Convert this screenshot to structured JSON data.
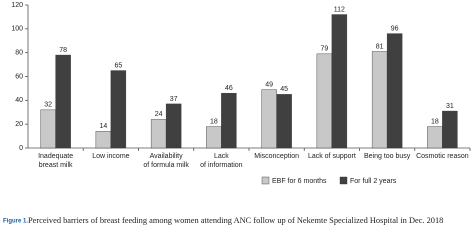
{
  "chart_data": {
    "type": "bar",
    "categories": [
      "Inadequate\nbreast milk",
      "Low income",
      "Availability\nof formula milk",
      "Lack\nof information",
      "Misconception",
      "Lack of support",
      "Being too busy",
      "Cosmotic reason"
    ],
    "series": [
      {
        "name": "EBF for 6 months",
        "color": "#c8c8c8",
        "values": [
          32,
          14,
          24,
          18,
          49,
          79,
          81,
          18
        ]
      },
      {
        "name": "For full 2 years",
        "color": "#404040",
        "values": [
          78,
          65,
          37,
          46,
          45,
          112,
          96,
          31
        ]
      }
    ],
    "ylim": [
      0,
      120
    ],
    "yticks": [
      0,
      20,
      40,
      60,
      80,
      100,
      120
    ],
    "grid": false,
    "caption_label": "Figure 1.",
    "caption": "Perceived barriers of breast feeding among women attending ANC follow up of Nekemte Specialized Hospital in Dec. 2018"
  }
}
